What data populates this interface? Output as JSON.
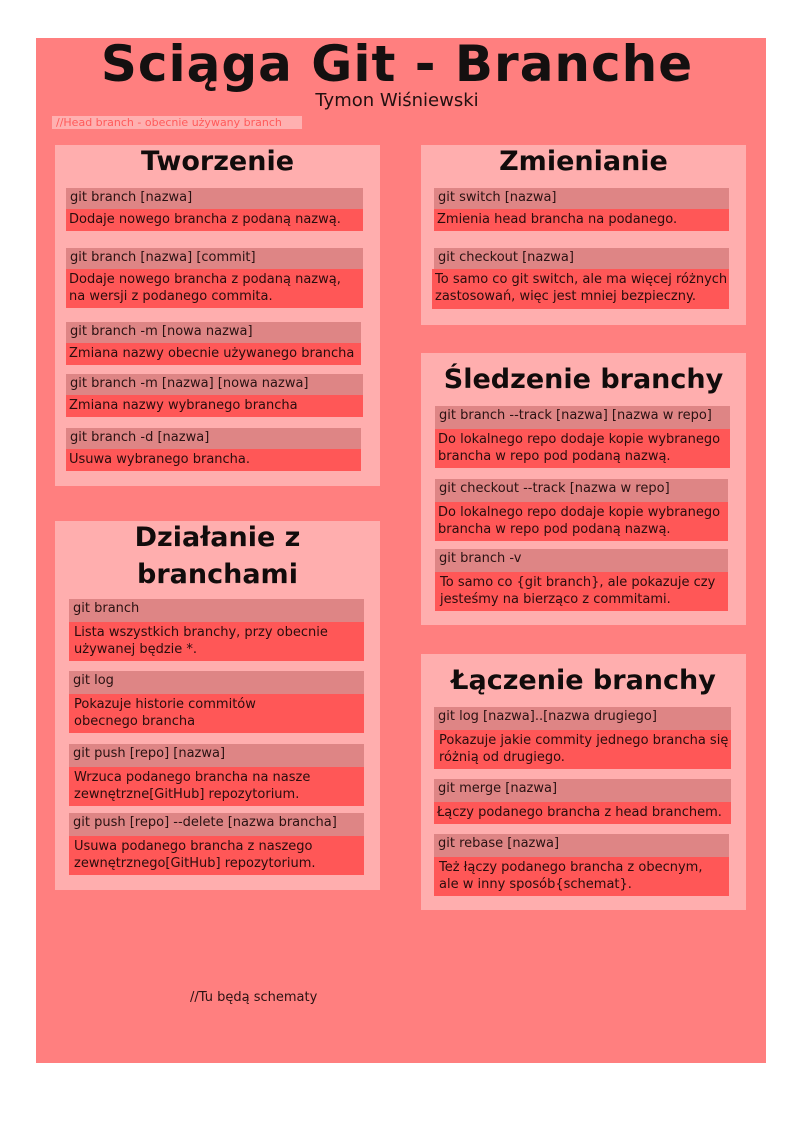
{
  "header": {
    "title": "Sciąga Git - Branche",
    "author": "Tymon Wiśniewski",
    "head_note": "//Head branch - obecnie używany branch"
  },
  "sections": {
    "tworzenie": {
      "title": "Tworzenie",
      "items": [
        {
          "cmd": "git branch [nazwa]",
          "desc": "Dodaje nowego brancha z podaną nazwą."
        },
        {
          "cmd": "git branch [nazwa] [commit]",
          "desc": "Dodaje nowego brancha z podaną nazwą,\nna wersji z podanego commita."
        },
        {
          "cmd": "git branch -m [nowa nazwa]",
          "desc": "Zmiana nazwy obecnie używanego brancha"
        },
        {
          "cmd": "git branch -m [nazwa] [nowa nazwa]",
          "desc": "Zmiana nazwy wybranego brancha"
        },
        {
          "cmd": "git branch -d [nazwa]",
          "desc": "Usuwa wybranego brancha."
        }
      ]
    },
    "dzialanie": {
      "title": "Działanie z\nbranchami",
      "items": [
        {
          "cmd": "git branch",
          "desc": "Lista wszystkich branchy, przy obecnie\nużywanej będzie *."
        },
        {
          "cmd": "git log",
          "desc": "Pokazuje historie commitów\nobecnego brancha"
        },
        {
          "cmd": "git push [repo] [nazwa]",
          "desc": "Wrzuca podanego brancha na nasze\nzewnętrzne[GitHub] repozytorium."
        },
        {
          "cmd": "git push [repo] --delete [nazwa brancha]",
          "desc": "Usuwa podanego brancha z naszego\nzewnętrznego[GitHub] repozytorium."
        }
      ]
    },
    "zmienianie": {
      "title": "Zmienianie",
      "items": [
        {
          "cmd": "git switch [nazwa]",
          "desc": "Zmienia head brancha na podanego."
        },
        {
          "cmd": "git checkout [nazwa]",
          "desc": "To samo co git switch, ale ma więcej różnych\nzastosowań, więc jest mniej bezpieczny."
        }
      ]
    },
    "sledzenie": {
      "title": "Śledzenie branchy",
      "items": [
        {
          "cmd": "git branch --track [nazwa] [nazwa w repo]",
          "desc": "Do lokalnego repo dodaje kopie wybranego\nbrancha w repo pod podaną nazwą."
        },
        {
          "cmd": "git checkout --track [nazwa w repo]",
          "desc": "Do lokalnego repo dodaje kopie wybranego\nbrancha w repo pod podaną nazwą."
        },
        {
          "cmd": "git branch -v",
          "desc": "To samo co {git branch}, ale pokazuje czy\njesteśmy na bierząco z commitami."
        }
      ]
    },
    "laczenie": {
      "title": "Łączenie branchy",
      "items": [
        {
          "cmd": "git log [nazwa]..[nazwa drugiego]",
          "desc": "Pokazuje jakie commity jednego brancha się\nróżnią od drugiego."
        },
        {
          "cmd": "git merge [nazwa]",
          "desc": "Łączy podanego brancha z head branchem."
        },
        {
          "cmd": "git rebase [nazwa]",
          "desc": "Też łączy podanego brancha z obecnym,\nale w inny sposób{schemat}."
        }
      ]
    }
  },
  "footer": {
    "note": "//Tu będą schematy"
  }
}
